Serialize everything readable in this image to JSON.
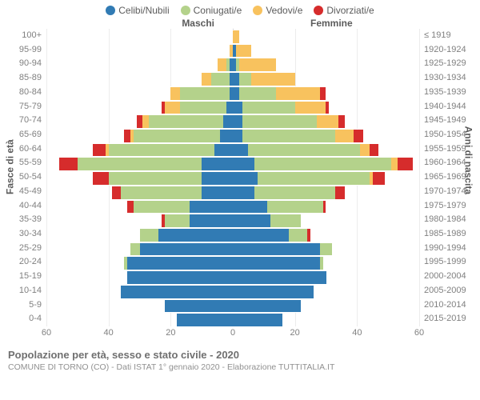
{
  "legend": [
    {
      "label": "Celibi/Nubili",
      "color": "#317bb4"
    },
    {
      "label": "Coniugati/e",
      "color": "#b4d28b"
    },
    {
      "label": "Vedovi/e",
      "color": "#f8c25e"
    },
    {
      "label": "Divorziati/e",
      "color": "#d62c2c"
    }
  ],
  "header_left": "Maschi",
  "header_right": "Femmine",
  "y_left_title": "Fasce di età",
  "y_right_title": "Anni di nascita",
  "footer_title": "Popolazione per età, sesso e stato civile - 2020",
  "footer_sub": "COMUNE DI TORNO (CO) - Dati ISTAT 1° gennaio 2020 - Elaborazione TUTTITALIA.IT",
  "max_value": 60,
  "x_ticks": [
    60,
    40,
    20,
    0,
    20,
    40,
    60
  ],
  "colors": {
    "single": "#317bb4",
    "married": "#b4d28b",
    "widowed": "#f8c25e",
    "divorced": "#d62c2c",
    "grid": "#ececec",
    "center": "#c0c0c0"
  },
  "rows": [
    {
      "age": "100+",
      "birth": "≤ 1919",
      "m": [
        0,
        0,
        0,
        0
      ],
      "f": [
        0,
        0,
        2,
        0
      ]
    },
    {
      "age": "95-99",
      "birth": "1920-1924",
      "m": [
        0,
        0,
        1,
        0
      ],
      "f": [
        1,
        0,
        5,
        0
      ]
    },
    {
      "age": "90-94",
      "birth": "1925-1929",
      "m": [
        1,
        1,
        3,
        0
      ],
      "f": [
        1,
        1,
        12,
        0
      ]
    },
    {
      "age": "85-89",
      "birth": "1930-1934",
      "m": [
        1,
        6,
        3,
        0
      ],
      "f": [
        2,
        4,
        14,
        0
      ]
    },
    {
      "age": "80-84",
      "birth": "1935-1939",
      "m": [
        1,
        16,
        3,
        0
      ],
      "f": [
        2,
        12,
        14,
        2
      ]
    },
    {
      "age": "75-79",
      "birth": "1940-1944",
      "m": [
        2,
        15,
        5,
        1
      ],
      "f": [
        3,
        17,
        10,
        1
      ]
    },
    {
      "age": "70-74",
      "birth": "1945-1949",
      "m": [
        3,
        24,
        2,
        2
      ],
      "f": [
        3,
        24,
        7,
        2
      ]
    },
    {
      "age": "65-69",
      "birth": "1950-1954",
      "m": [
        4,
        28,
        1,
        2
      ],
      "f": [
        3,
        30,
        6,
        3
      ]
    },
    {
      "age": "60-64",
      "birth": "1955-1959",
      "m": [
        6,
        34,
        1,
        4
      ],
      "f": [
        5,
        36,
        3,
        3
      ]
    },
    {
      "age": "55-59",
      "birth": "1960-1964",
      "m": [
        10,
        40,
        0,
        6
      ],
      "f": [
        7,
        44,
        2,
        5
      ]
    },
    {
      "age": "50-54",
      "birth": "1965-1969",
      "m": [
        10,
        30,
        0,
        5
      ],
      "f": [
        8,
        36,
        1,
        4
      ]
    },
    {
      "age": "45-49",
      "birth": "1970-1974",
      "m": [
        10,
        26,
        0,
        3
      ],
      "f": [
        7,
        26,
        0,
        3
      ]
    },
    {
      "age": "40-44",
      "birth": "1975-1979",
      "m": [
        14,
        18,
        0,
        2
      ],
      "f": [
        11,
        18,
        0,
        1
      ]
    },
    {
      "age": "35-39",
      "birth": "1980-1984",
      "m": [
        14,
        8,
        0,
        1
      ],
      "f": [
        12,
        10,
        0,
        0
      ]
    },
    {
      "age": "30-34",
      "birth": "1985-1989",
      "m": [
        24,
        6,
        0,
        0
      ],
      "f": [
        18,
        6,
        0,
        1
      ]
    },
    {
      "age": "25-29",
      "birth": "1990-1994",
      "m": [
        30,
        3,
        0,
        0
      ],
      "f": [
        28,
        4,
        0,
        0
      ]
    },
    {
      "age": "20-24",
      "birth": "1995-1999",
      "m": [
        34,
        1,
        0,
        0
      ],
      "f": [
        28,
        1,
        0,
        0
      ]
    },
    {
      "age": "15-19",
      "birth": "2000-2004",
      "m": [
        34,
        0,
        0,
        0
      ],
      "f": [
        30,
        0,
        0,
        0
      ]
    },
    {
      "age": "10-14",
      "birth": "2005-2009",
      "m": [
        36,
        0,
        0,
        0
      ],
      "f": [
        26,
        0,
        0,
        0
      ]
    },
    {
      "age": "5-9",
      "birth": "2010-2014",
      "m": [
        22,
        0,
        0,
        0
      ],
      "f": [
        22,
        0,
        0,
        0
      ]
    },
    {
      "age": "0-4",
      "birth": "2015-2019",
      "m": [
        18,
        0,
        0,
        0
      ],
      "f": [
        16,
        0,
        0,
        0
      ]
    }
  ]
}
